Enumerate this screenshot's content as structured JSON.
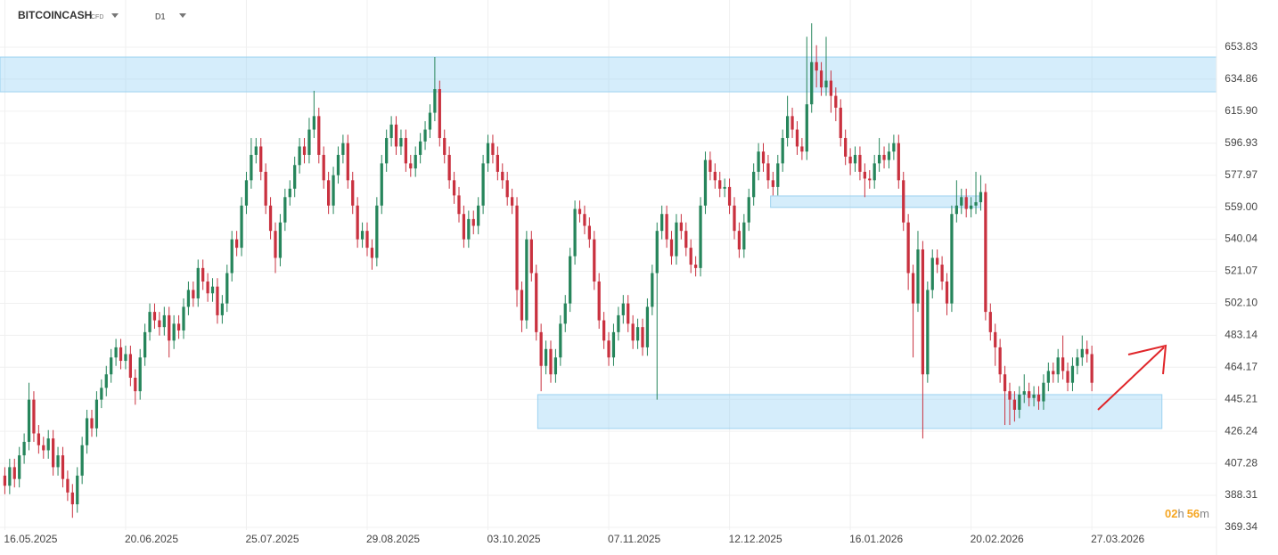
{
  "header": {
    "symbol": "BITCOINCASH",
    "market": "CFD",
    "timeframe": "D1"
  },
  "countdown": [
    "02",
    "h",
    "56",
    "m"
  ],
  "chart_data": {
    "type": "candlestick",
    "up_color": "#26855b",
    "down_color": "#c9313f",
    "grid": true,
    "xlim": [
      -1,
      250.8
    ],
    "xticks": [
      {
        "value": 0,
        "label": "16.05.2025"
      },
      {
        "value": 25,
        "label": "20.06.2025"
      },
      {
        "value": 50,
        "label": "25.07.2025"
      },
      {
        "value": 75,
        "label": "29.08.2025"
      },
      {
        "value": 100,
        "label": "03.10.2025"
      },
      {
        "value": 125,
        "label": "07.11.2025"
      },
      {
        "value": 150,
        "label": "12.12.2025"
      },
      {
        "value": 175,
        "label": "16.01.2026"
      },
      {
        "value": 200,
        "label": "20.02.2026"
      },
      {
        "value": 225,
        "label": "27.03.2026"
      }
    ],
    "ylim": [
      365.1,
      681.8
    ],
    "yticks": [
      653.83,
      634.86,
      {
        "value": 615.9,
        "label": "615.90"
      },
      596.93,
      577.97,
      {
        "value": 559,
        "label": "559.00"
      },
      540.04,
      521.07,
      {
        "value": 502.1,
        "label": "502.10"
      },
      483.14,
      464.17,
      445.21,
      426.24,
      407.28,
      388.31,
      369.34
    ],
    "zones": [
      {
        "x0": -1,
        "x1": 250.8,
        "top": 648.0,
        "bottom": 627.4
      },
      {
        "x0": 158.5,
        "x1": 202,
        "top": 565.7,
        "bottom": 558.9
      },
      {
        "x0": 110.3,
        "x1": 239.5,
        "top": 448.0,
        "bottom": 427.9
      }
    ],
    "open": [
      400,
      394,
      405,
      398,
      412,
      420,
      445,
      425,
      418,
      415,
      422,
      405,
      412,
      398,
      390,
      383,
      400,
      418,
      434,
      428,
      445,
      452,
      460,
      470,
      476,
      468,
      472,
      458,
      450,
      470,
      485,
      497,
      492,
      488,
      495,
      480,
      490,
      486,
      500,
      510,
      505,
      523,
      515,
      508,
      512,
      495,
      502,
      520,
      540,
      535,
      560,
      575,
      590,
      595,
      580,
      560,
      545,
      529,
      550,
      565,
      570,
      584,
      595,
      590,
      605,
      613,
      590,
      575,
      560,
      578,
      590,
      597,
      575,
      560,
      540,
      545,
      535,
      529,
      560,
      585,
      600,
      608,
      595,
      600,
      585,
      582,
      590,
      598,
      605,
      615,
      629,
      600,
      590,
      575,
      566,
      555,
      540,
      552,
      548,
      560,
      585,
      597,
      590,
      580,
      575,
      565,
      560,
      510,
      492,
      540,
      520,
      485,
      465,
      475,
      460,
      470,
      490,
      502,
      530,
      558,
      555,
      548,
      540,
      515,
      492,
      480,
      470,
      485,
      495,
      502,
      490,
      480,
      488,
      476,
      500,
      520,
      545,
      555,
      540,
      530,
      550,
      545,
      535,
      525,
      523,
      560,
      587,
      580,
      575,
      570,
      571,
      560,
      545,
      534,
      550,
      565,
      580,
      592,
      585,
      575,
      571,
      585,
      600,
      613,
      605,
      595,
      592,
      620,
      645,
      640,
      630,
      634,
      625,
      618,
      600,
      589,
      585,
      590,
      580,
      576,
      575,
      585,
      590,
      587,
      592,
      597,
      575,
      550,
      520,
      502,
      534,
      460,
      510,
      529,
      525,
      515,
      502,
      555,
      560,
      565,
      558,
      560,
      562,
      568,
      497,
      485,
      476,
      460,
      450,
      445,
      439,
      448,
      450,
      446,
      448,
      444,
      455,
      462,
      460,
      470,
      462,
      455,
      465,
      470,
      475,
      472
    ],
    "high": [
      405,
      410,
      410,
      417,
      425,
      455,
      450,
      430,
      423,
      427,
      427,
      417,
      417,
      403,
      395,
      405,
      423,
      439,
      439,
      450,
      457,
      465,
      475,
      481,
      481,
      477,
      477,
      463,
      475,
      490,
      502,
      502,
      497,
      500,
      500,
      495,
      495,
      505,
      515,
      515,
      528,
      528,
      520,
      517,
      517,
      507,
      525,
      545,
      545,
      565,
      580,
      600,
      600,
      600,
      585,
      565,
      550,
      555,
      570,
      575,
      589,
      600,
      600,
      612,
      628,
      618,
      595,
      580,
      583,
      595,
      602,
      602,
      580,
      565,
      550,
      550,
      540,
      565,
      590,
      605,
      613,
      613,
      605,
      605,
      590,
      595,
      603,
      610,
      620,
      648,
      634,
      605,
      595,
      580,
      571,
      560,
      557,
      557,
      565,
      590,
      602,
      602,
      595,
      585,
      580,
      570,
      565,
      515,
      545,
      545,
      525,
      490,
      480,
      480,
      475,
      495,
      507,
      535,
      563,
      563,
      560,
      553,
      545,
      520,
      497,
      485,
      490,
      500,
      507,
      507,
      495,
      493,
      493,
      505,
      525,
      550,
      560,
      560,
      545,
      555,
      555,
      550,
      540,
      530,
      565,
      592,
      592,
      585,
      580,
      576,
      576,
      565,
      550,
      555,
      570,
      585,
      597,
      597,
      590,
      580,
      590,
      605,
      625,
      618,
      610,
      600,
      660,
      668,
      655,
      645,
      660,
      640,
      630,
      623,
      605,
      594,
      595,
      595,
      585,
      581,
      590,
      600,
      595,
      597,
      602,
      602,
      580,
      555,
      525,
      545,
      539,
      515,
      534,
      534,
      530,
      520,
      560,
      575,
      570,
      570,
      565,
      580,
      578,
      573,
      502,
      490,
      481,
      465,
      455,
      450,
      453,
      460,
      455,
      453,
      453,
      460,
      467,
      467,
      475,
      483,
      467,
      470,
      475,
      483,
      480,
      477
    ],
    "low": [
      389,
      389,
      393,
      393,
      407,
      415,
      420,
      413,
      410,
      410,
      400,
      400,
      393,
      385,
      375,
      378,
      395,
      413,
      423,
      423,
      440,
      447,
      455,
      465,
      463,
      463,
      453,
      442,
      445,
      465,
      480,
      487,
      483,
      483,
      470,
      475,
      481,
      481,
      495,
      500,
      500,
      510,
      503,
      503,
      490,
      490,
      497,
      515,
      530,
      530,
      555,
      570,
      585,
      575,
      555,
      540,
      520,
      524,
      545,
      560,
      565,
      579,
      585,
      585,
      600,
      585,
      570,
      555,
      555,
      573,
      585,
      570,
      555,
      535,
      535,
      530,
      522,
      524,
      555,
      580,
      595,
      590,
      590,
      580,
      577,
      577,
      585,
      593,
      600,
      610,
      595,
      585,
      570,
      561,
      550,
      535,
      535,
      543,
      543,
      555,
      580,
      585,
      575,
      570,
      560,
      555,
      500,
      485,
      487,
      515,
      480,
      450,
      460,
      455,
      455,
      465,
      485,
      497,
      525,
      550,
      543,
      535,
      510,
      487,
      475,
      465,
      465,
      480,
      490,
      485,
      475,
      475,
      471,
      471,
      495,
      445,
      540,
      535,
      525,
      525,
      540,
      530,
      520,
      518,
      518,
      555,
      575,
      570,
      565,
      565,
      555,
      540,
      529,
      529,
      545,
      560,
      575,
      580,
      570,
      566,
      566,
      580,
      595,
      600,
      590,
      587,
      587,
      615,
      630,
      625,
      625,
      615,
      610,
      595,
      584,
      578,
      580,
      575,
      565,
      570,
      570,
      580,
      582,
      582,
      587,
      570,
      545,
      510,
      470,
      497,
      422,
      455,
      505,
      520,
      510,
      495,
      497,
      550,
      555,
      553,
      553,
      555,
      557,
      492,
      480,
      465,
      455,
      430,
      430,
      432,
      434,
      443,
      441,
      441,
      439,
      439,
      450,
      455,
      455,
      457,
      450,
      450,
      460,
      465,
      467,
      450
    ],
    "close": [
      394,
      405,
      398,
      412,
      420,
      445,
      425,
      418,
      415,
      422,
      405,
      412,
      398,
      390,
      383,
      400,
      418,
      434,
      428,
      445,
      452,
      460,
      470,
      476,
      468,
      472,
      458,
      450,
      470,
      485,
      497,
      492,
      488,
      495,
      480,
      490,
      486,
      500,
      510,
      505,
      523,
      515,
      508,
      512,
      495,
      502,
      520,
      540,
      535,
      560,
      575,
      590,
      595,
      580,
      560,
      545,
      529,
      550,
      565,
      570,
      584,
      595,
      590,
      605,
      613,
      590,
      575,
      560,
      578,
      590,
      597,
      575,
      560,
      540,
      545,
      535,
      529,
      560,
      585,
      600,
      608,
      595,
      600,
      585,
      582,
      590,
      598,
      605,
      615,
      629,
      600,
      590,
      575,
      566,
      555,
      540,
      552,
      548,
      560,
      585,
      597,
      590,
      580,
      575,
      565,
      560,
      510,
      492,
      540,
      520,
      485,
      465,
      475,
      460,
      470,
      490,
      502,
      530,
      558,
      555,
      548,
      540,
      515,
      492,
      480,
      470,
      485,
      495,
      502,
      490,
      480,
      488,
      476,
      500,
      520,
      545,
      555,
      540,
      530,
      550,
      545,
      535,
      525,
      523,
      560,
      587,
      580,
      575,
      570,
      571,
      560,
      545,
      534,
      550,
      565,
      580,
      592,
      585,
      575,
      571,
      585,
      600,
      613,
      605,
      595,
      592,
      620,
      645,
      640,
      630,
      634,
      625,
      618,
      600,
      589,
      585,
      590,
      580,
      576,
      575,
      585,
      590,
      587,
      592,
      597,
      575,
      550,
      520,
      502,
      534,
      460,
      510,
      529,
      525,
      515,
      502,
      555,
      560,
      565,
      558,
      560,
      562,
      568,
      497,
      485,
      476,
      460,
      450,
      445,
      439,
      448,
      450,
      446,
      448,
      444,
      455,
      462,
      460,
      470,
      462,
      455,
      465,
      470,
      475,
      472,
      455
    ]
  }
}
